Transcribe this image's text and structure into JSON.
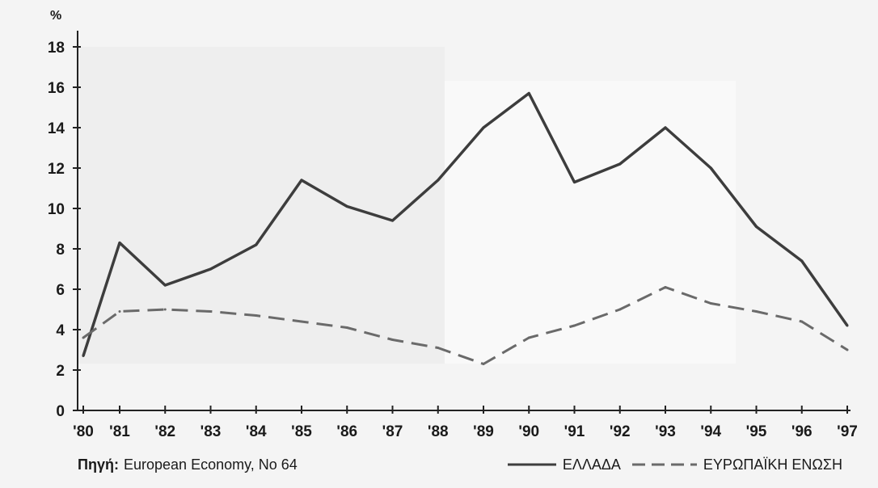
{
  "chart_data": {
    "type": "line",
    "unit_label": "%",
    "x": [
      "'80",
      "'81",
      "'82",
      "'83",
      "'84",
      "'85",
      "'86",
      "'87",
      "'88",
      "'89",
      "'90",
      "'91",
      "'92",
      "'93",
      "'94",
      "'95",
      "'96",
      "'97"
    ],
    "yticks": [
      0,
      2,
      4,
      6,
      8,
      10,
      12,
      14,
      16,
      18
    ],
    "ylim": [
      0,
      18
    ],
    "grid": false,
    "legend_position": "bottom-right",
    "series": [
      {
        "name": "ΕΛΛΑΔΑ",
        "style": "solid",
        "color": "#3d3d3d",
        "values": [
          2.7,
          8.3,
          6.2,
          7.0,
          8.2,
          11.4,
          10.1,
          9.4,
          11.4,
          14.0,
          15.7,
          11.3,
          12.2,
          14.0,
          12.0,
          9.1,
          7.4,
          4.2
        ]
      },
      {
        "name": "ΕΥΡΩΠΑΪΚΗ ΕΝΩΣΗ",
        "style": "dashed",
        "color": "#6a6a6a",
        "values": [
          3.6,
          4.9,
          5.0,
          4.9,
          4.7,
          4.4,
          4.1,
          3.5,
          3.1,
          2.3,
          3.6,
          4.2,
          5.0,
          6.1,
          5.3,
          4.9,
          4.4,
          3.0
        ]
      }
    ]
  },
  "source": {
    "label": "Πηγή:",
    "text": "European Economy, No 64"
  }
}
